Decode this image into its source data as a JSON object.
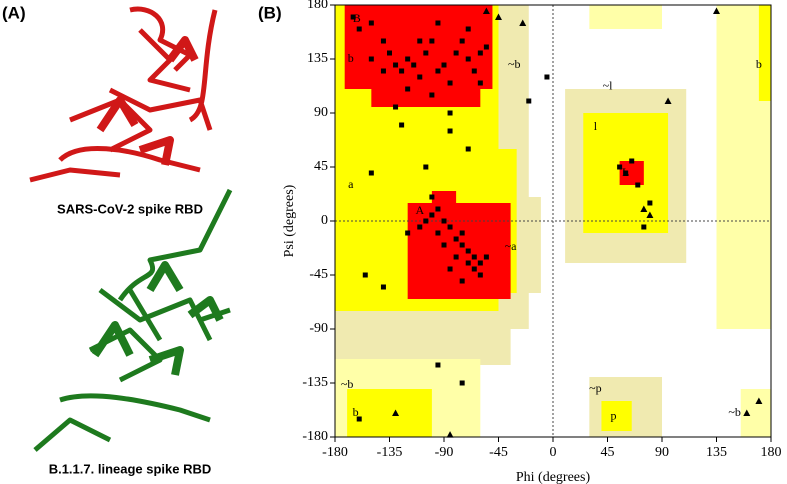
{
  "figure": {
    "panel_a_label": "(A)",
    "panel_b_label": "(B)",
    "caption_top": "SARS-CoV-2 spike RBD",
    "caption_bottom": "B.1.1.7. lineage spike RBD"
  },
  "chart_data": {
    "type": "scatter",
    "xlabel": "Phi (degrees)",
    "ylabel": "Psi (degrees)",
    "xlim": [
      -180,
      180
    ],
    "ylim": [
      -180,
      180
    ],
    "xticks": [
      -180,
      -135,
      -90,
      -45,
      0,
      45,
      90,
      135,
      180
    ],
    "yticks": [
      -180,
      -135,
      -90,
      -45,
      0,
      45,
      90,
      135,
      180
    ],
    "region_labels": [
      "B",
      "b",
      "~b",
      "a",
      "A",
      "~a",
      "~l",
      "l",
      "L",
      "~p",
      "p",
      "~b",
      "b",
      "~b",
      "b"
    ],
    "series": [
      {
        "marker": "square",
        "color": "#000000",
        "x": [
          -165,
          -160,
          -150,
          -140,
          -135,
          -130,
          -125,
          -120,
          -115,
          -110,
          -105,
          -100,
          -95,
          -90,
          -85,
          -80,
          -75,
          -70,
          -65,
          -60,
          -55,
          -120,
          -100,
          -140,
          -150,
          -95,
          -70,
          -130,
          -85,
          -110,
          -60,
          -100,
          -95,
          -90,
          -85,
          -80,
          -75,
          -70,
          -65,
          -60,
          -60,
          -65,
          -70,
          -75,
          -80,
          -90,
          -95,
          -100,
          -105,
          -110,
          -85,
          -55,
          -120,
          -150,
          -105,
          -70,
          -75,
          -140,
          -155,
          -95,
          -75,
          -160,
          -20,
          -5,
          55,
          60,
          65,
          70,
          80,
          75,
          -85,
          -125
        ],
        "values": [
          170,
          160,
          165,
          150,
          140,
          130,
          125,
          135,
          130,
          120,
          140,
          150,
          125,
          130,
          115,
          140,
          150,
          135,
          125,
          140,
          145,
          110,
          105,
          125,
          135,
          165,
          160,
          95,
          90,
          150,
          115,
          20,
          10,
          0,
          -5,
          -15,
          -20,
          -25,
          -30,
          -35,
          -45,
          -40,
          -35,
          -10,
          -30,
          -20,
          -10,
          5,
          0,
          -5,
          -40,
          -30,
          -10,
          40,
          45,
          60,
          -50,
          -55,
          -45,
          -120,
          -135,
          -165,
          100,
          120,
          45,
          40,
          50,
          30,
          15,
          -5,
          75,
          80
        ]
      },
      {
        "marker": "triangle",
        "color": "#000000",
        "x": [
          -55,
          -45,
          -25,
          95,
          75,
          80,
          135,
          -130,
          -85,
          160,
          170
        ],
        "values": [
          175,
          170,
          165,
          100,
          10,
          5,
          175,
          -160,
          -178,
          -160,
          -150
        ]
      }
    ]
  }
}
